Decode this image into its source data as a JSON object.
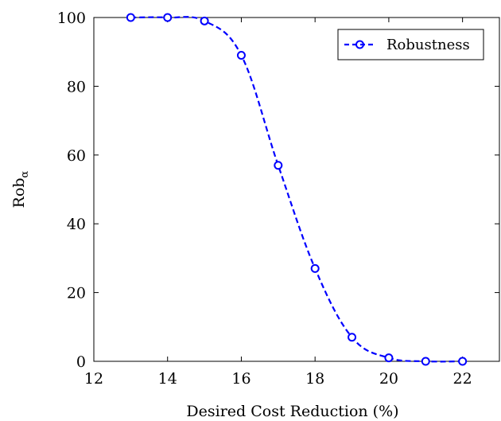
{
  "chart_data": {
    "type": "line",
    "xlabel": "Desired Cost Reduction (%)",
    "ylabel": "Rob",
    "ylabel_subscript": "α",
    "xlim": [
      12,
      23
    ],
    "ylim": [
      0,
      100
    ],
    "xticks": [
      12,
      14,
      16,
      18,
      20,
      22
    ],
    "yticks": [
      0,
      20,
      40,
      60,
      80,
      100
    ],
    "grid": false,
    "legend_position": "top-right",
    "series": [
      {
        "name": "Robustness",
        "color": "#0000ff",
        "line_style": "dashed",
        "marker": "open-circle",
        "x": [
          13,
          14,
          15,
          16,
          17,
          18,
          19,
          20,
          21,
          22
        ],
        "y": [
          100,
          100,
          99,
          89,
          57,
          27,
          7,
          1,
          0,
          0
        ]
      }
    ]
  }
}
